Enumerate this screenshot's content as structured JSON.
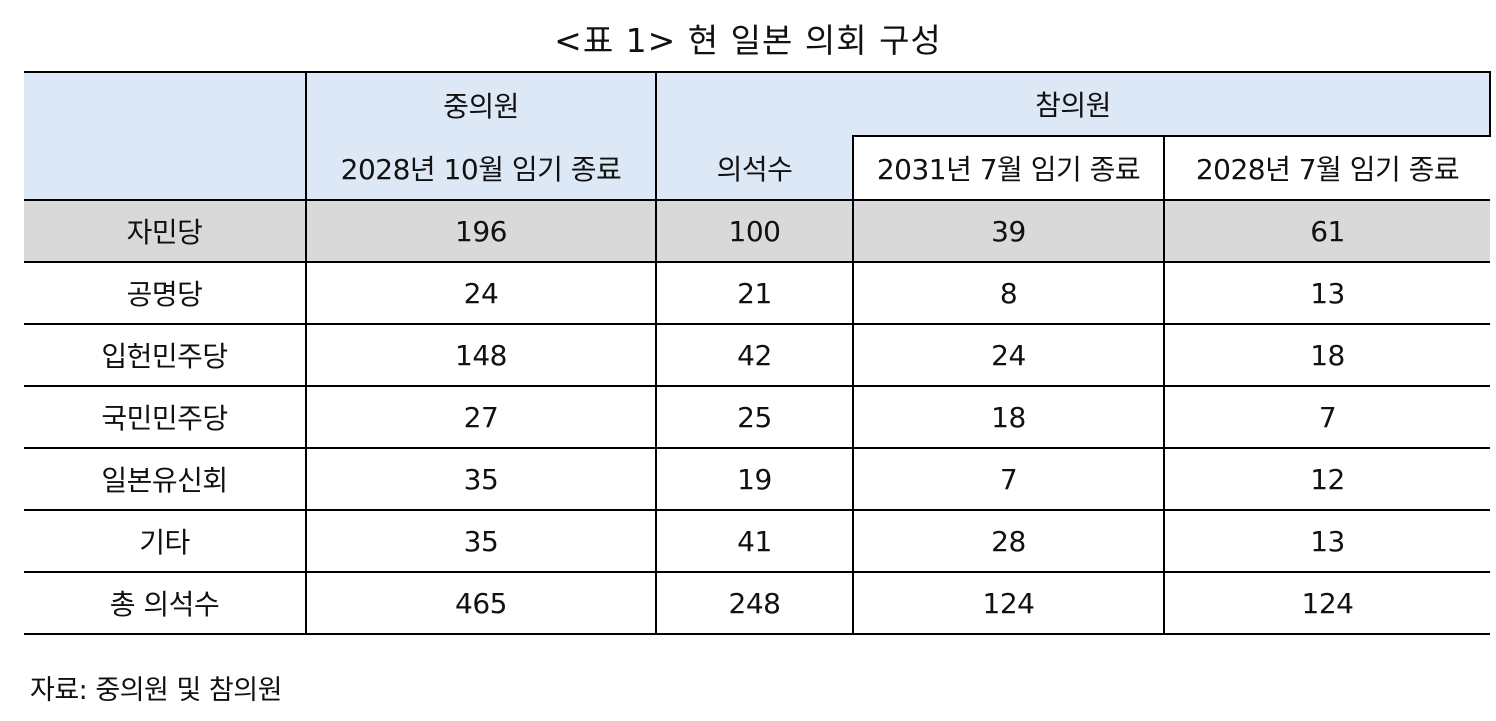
{
  "title": "<표 1> 현 일본 의회 구성",
  "table": {
    "header": {
      "lower_house": "중의원",
      "lower_term": "2028년 10월 임기 종료",
      "upper_house": "참의원",
      "upper_seats": "의석수",
      "upper_term1": "2031년 7월 임기 종료",
      "upper_term2": "2028년 7월 임기 종료"
    },
    "rows": [
      {
        "party": "자민당",
        "lower": "196",
        "upper": "100",
        "upper_2031": "39",
        "upper_2028": "61"
      },
      {
        "party": "공명당",
        "lower": "24",
        "upper": "21",
        "upper_2031": "8",
        "upper_2028": "13"
      },
      {
        "party": "입헌민주당",
        "lower": "148",
        "upper": "42",
        "upper_2031": "24",
        "upper_2028": "18"
      },
      {
        "party": "국민민주당",
        "lower": "27",
        "upper": "25",
        "upper_2031": "18",
        "upper_2028": "7"
      },
      {
        "party": "일본유신회",
        "lower": "35",
        "upper": "19",
        "upper_2031": "7",
        "upper_2028": "12"
      },
      {
        "party": "기타",
        "lower": "35",
        "upper": "41",
        "upper_2031": "28",
        "upper_2028": "13"
      },
      {
        "party": "총 의석수",
        "lower": "465",
        "upper": "248",
        "upper_2031": "124",
        "upper_2028": "124"
      }
    ],
    "highlight_color": "#d9d9d9",
    "header_color": "#dce8f5"
  },
  "source": "자료: 중의원 및 참의원"
}
